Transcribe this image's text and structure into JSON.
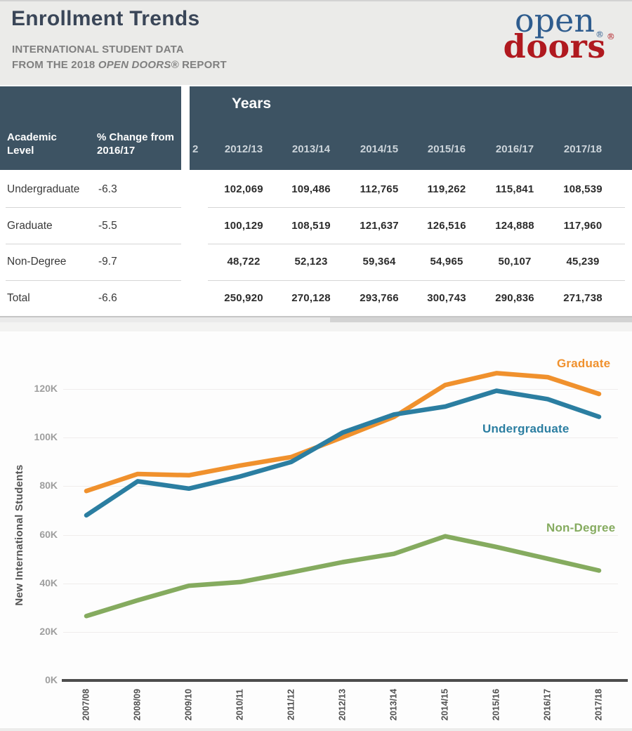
{
  "header": {
    "title": "Enrollment Trends",
    "subtitle_line1": "INTERNATIONAL STUDENT DATA",
    "subtitle_line2_prefix": "FROM THE 2018 ",
    "subtitle_line2_italic": "OPEN DOORS®",
    "subtitle_line2_suffix": " REPORT",
    "logo": {
      "word1": "open",
      "word2": "doors",
      "registered1": "®",
      "registered2": "®"
    }
  },
  "table": {
    "academic_level_header": "Academic Level",
    "pct_change_header": "% Change from 2016/17",
    "years_title": "Years",
    "truncated_year": "2",
    "years": [
      "2012/13",
      "2013/14",
      "2014/15",
      "2015/16",
      "2016/17",
      "2017/18"
    ],
    "rows": [
      {
        "level": "Undergraduate",
        "pct_change": "-6.3",
        "values": [
          "102,069",
          "109,486",
          "112,765",
          "119,262",
          "115,841",
          "108,539"
        ]
      },
      {
        "level": "Graduate",
        "pct_change": "-5.5",
        "values": [
          "100,129",
          "108,519",
          "121,637",
          "126,516",
          "124,888",
          "117,960"
        ]
      },
      {
        "level": "Non-Degree",
        "pct_change": "-9.7",
        "values": [
          "48,722",
          "52,123",
          "59,364",
          "54,965",
          "50,107",
          "45,239"
        ]
      },
      {
        "level": "Total",
        "pct_change": "-6.6",
        "values": [
          "250,920",
          "270,128",
          "293,766",
          "300,743",
          "290,836",
          "271,738"
        ]
      }
    ]
  },
  "chart": {
    "y_axis_title": "New International Students",
    "y_ticks": [
      "120K",
      "100K",
      "80K",
      "60K",
      "40K",
      "20K",
      "0K"
    ],
    "labels": {
      "graduate": "Graduate",
      "undergraduate": "Undergraduate",
      "nondegree": "Non-Degree"
    },
    "colors": {
      "graduate": "#f0912d",
      "undergraduate": "#2b7ea1",
      "nondegree": "#85ab5f"
    }
  },
  "chart_data": {
    "type": "line",
    "x": [
      "2007/08",
      "2008/09",
      "2009/10",
      "2010/11",
      "2011/12",
      "2012/13",
      "2013/14",
      "2014/15",
      "2015/16",
      "2016/17",
      "2017/18"
    ],
    "series": [
      {
        "name": "Graduate",
        "color": "#f0912d",
        "values": [
          78000,
          85000,
          84500,
          88500,
          92000,
          100129,
          108519,
          121637,
          126516,
          124888,
          117960
        ]
      },
      {
        "name": "Undergraduate",
        "color": "#2b7ea1",
        "values": [
          68000,
          82000,
          79000,
          84000,
          90000,
          102069,
          109486,
          112765,
          119262,
          115841,
          108539
        ]
      },
      {
        "name": "Non-Degree",
        "color": "#85ab5f",
        "values": [
          26500,
          33000,
          39000,
          40500,
          44500,
          48722,
          52123,
          59364,
          54965,
          50107,
          45239
        ]
      }
    ],
    "ylabel": "New International Students",
    "xlabel": "",
    "ylim": [
      0,
      130000
    ],
    "grid": true,
    "legend_position": "inline-end-of-line"
  }
}
